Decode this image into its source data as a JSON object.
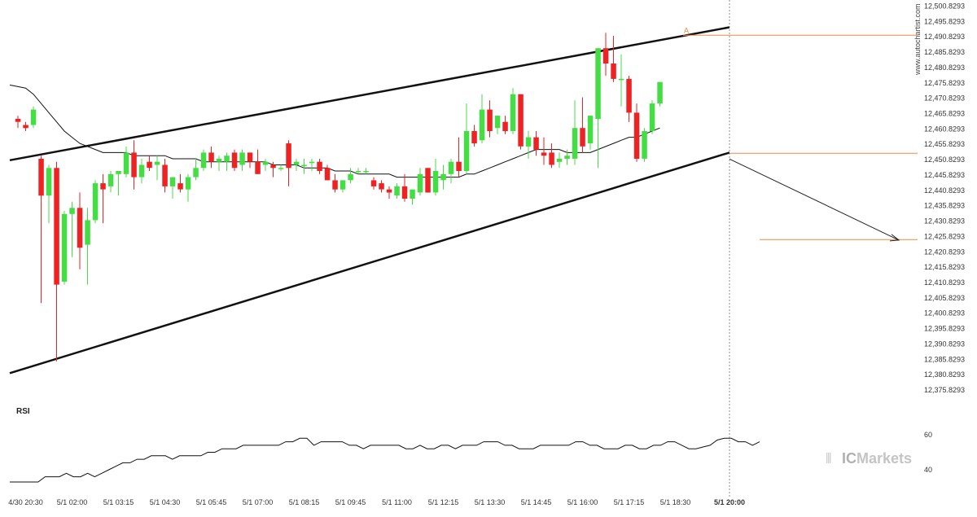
{
  "chart_data": {
    "type": "candlestick",
    "watermark_vertical": "www.autochartist.com",
    "brand": {
      "prefix": "IC",
      "name": "Markets"
    },
    "colors": {
      "up": "#44dd44",
      "down": "#ee2222",
      "pattern_lines": "#111111",
      "moving_average": "#111111",
      "level_lines": "#ee8844",
      "projection_arrow": "#222222",
      "rsi_line": "#111111",
      "axis_text": "#333333",
      "brand_text": "#b8b8b8"
    },
    "price_axis": {
      "min": 12375.8293,
      "max": 12500.8293,
      "tick_step": 5,
      "tick_labels": [
        "12,500.8293",
        "12,495.8293",
        "12,490.8293",
        "12,485.8293",
        "12,480.8293",
        "12,475.8293",
        "12,470.8293",
        "12,465.8293",
        "12,460.8293",
        "12,455.8293",
        "12,450.8293",
        "12,445.8293",
        "12,440.8293",
        "12,435.8293",
        "12,430.8293",
        "12,425.8293",
        "12,420.8293",
        "12,415.8293",
        "12,410.8293",
        "12,405.8293",
        "12,400.8293",
        "12,395.8293",
        "12,390.8293",
        "12,385.8293",
        "12,380.8293",
        "12,375.8293"
      ]
    },
    "time_axis": {
      "labels": [
        "4/30 20:30",
        "5/1 02:00",
        "5/1 03:15",
        "5/1 04:30",
        "5/1 05:45",
        "5/1 07:00",
        "5/1 08:15",
        "5/1 09:45",
        "5/1 11:00",
        "5/1 12:15",
        "5/1 13:30",
        "5/1 14:45",
        "5/1 16:00",
        "5/1 17:15",
        "5/1 18:30",
        "5/1 20:00"
      ],
      "label_bar_index": [
        1,
        7,
        13,
        19,
        25,
        31,
        37,
        43,
        49,
        55,
        61,
        67,
        73,
        79,
        85,
        92
      ],
      "bold_label": "5/1 20:00"
    },
    "candles": [
      {
        "o": 12464,
        "h": 12465,
        "l": 12461,
        "c": 12463
      },
      {
        "o": 12462,
        "h": 12463,
        "l": 12460,
        "c": 12461
      },
      {
        "o": 12462,
        "h": 12468,
        "l": 12461,
        "c": 12467
      },
      {
        "o": 12451,
        "h": 12452,
        "l": 12404,
        "c": 12439
      },
      {
        "o": 12439,
        "h": 12449,
        "l": 12430,
        "c": 12448
      },
      {
        "o": 12448,
        "h": 12450,
        "l": 12385,
        "c": 12410
      },
      {
        "o": 12411,
        "h": 12434,
        "l": 12410,
        "c": 12433
      },
      {
        "o": 12433,
        "h": 12437,
        "l": 12419,
        "c": 12435
      },
      {
        "o": 12435,
        "h": 12440,
        "l": 12415,
        "c": 12422
      },
      {
        "o": 12423,
        "h": 12435,
        "l": 12410,
        "c": 12431
      },
      {
        "o": 12431,
        "h": 12444,
        "l": 12430,
        "c": 12443
      },
      {
        "o": 12443,
        "h": 12446,
        "l": 12430,
        "c": 12441
      },
      {
        "o": 12442,
        "h": 12447,
        "l": 12440,
        "c": 12446
      },
      {
        "o": 12446,
        "h": 12447,
        "l": 12439,
        "c": 12447
      },
      {
        "o": 12446,
        "h": 12455,
        "l": 12445,
        "c": 12453
      },
      {
        "o": 12453,
        "h": 12457,
        "l": 12441,
        "c": 12445
      },
      {
        "o": 12445,
        "h": 12451,
        "l": 12443,
        "c": 12449
      },
      {
        "o": 12450,
        "h": 12452,
        "l": 12447,
        "c": 12448
      },
      {
        "o": 12449,
        "h": 12452,
        "l": 12444,
        "c": 12450
      },
      {
        "o": 12449,
        "h": 12451,
        "l": 12440,
        "c": 12442
      },
      {
        "o": 12442,
        "h": 12445,
        "l": 12438,
        "c": 12445
      },
      {
        "o": 12443,
        "h": 12446,
        "l": 12440,
        "c": 12441
      },
      {
        "o": 12441,
        "h": 12446,
        "l": 12437,
        "c": 12445
      },
      {
        "o": 12445,
        "h": 12451,
        "l": 12444,
        "c": 12448
      },
      {
        "o": 12448,
        "h": 12454,
        "l": 12447,
        "c": 12453
      },
      {
        "o": 12453,
        "h": 12455,
        "l": 12448,
        "c": 12450
      },
      {
        "o": 12450,
        "h": 12452,
        "l": 12447,
        "c": 12451
      },
      {
        "o": 12450,
        "h": 12453,
        "l": 12447,
        "c": 12452
      },
      {
        "o": 12453,
        "h": 12454,
        "l": 12447,
        "c": 12448
      },
      {
        "o": 12449,
        "h": 12454,
        "l": 12447,
        "c": 12453
      },
      {
        "o": 12453,
        "h": 12453,
        "l": 12448,
        "c": 12450
      },
      {
        "o": 12450,
        "h": 12454,
        "l": 12446,
        "c": 12446
      },
      {
        "o": 12449,
        "h": 12451,
        "l": 12447,
        "c": 12450
      },
      {
        "o": 12449,
        "h": 12450,
        "l": 12445,
        "c": 12448
      },
      {
        "o": 12448,
        "h": 12449,
        "l": 12447,
        "c": 12448
      },
      {
        "o": 12456,
        "h": 12457,
        "l": 12442,
        "c": 12448
      },
      {
        "o": 12449,
        "h": 12451,
        "l": 12447,
        "c": 12450
      },
      {
        "o": 12449,
        "h": 12451,
        "l": 12446,
        "c": 12449
      },
      {
        "o": 12450,
        "h": 12451,
        "l": 12447,
        "c": 12450
      },
      {
        "o": 12450,
        "h": 12451,
        "l": 12446,
        "c": 12447
      },
      {
        "o": 12448,
        "h": 12449,
        "l": 12444,
        "c": 12444
      },
      {
        "o": 12444,
        "h": 12446,
        "l": 12440,
        "c": 12441
      },
      {
        "o": 12441,
        "h": 12444,
        "l": 12440,
        "c": 12444
      },
      {
        "o": 12444,
        "h": 12448,
        "l": 12443,
        "c": 12446
      },
      {
        "o": 12447,
        "h": 12448,
        "l": 12446,
        "c": 12447
      },
      {
        "o": 12447,
        "h": 12448,
        "l": 12446,
        "c": 12447
      },
      {
        "o": 12444,
        "h": 12445,
        "l": 12441,
        "c": 12442
      },
      {
        "o": 12443,
        "h": 12444,
        "l": 12440,
        "c": 12441
      },
      {
        "o": 12441,
        "h": 12442,
        "l": 12438,
        "c": 12440
      },
      {
        "o": 12439,
        "h": 12443,
        "l": 12438,
        "c": 12442
      },
      {
        "o": 12442,
        "h": 12446,
        "l": 12437,
        "c": 12438
      },
      {
        "o": 12438,
        "h": 12441,
        "l": 12436,
        "c": 12441
      },
      {
        "o": 12440,
        "h": 12448,
        "l": 12439,
        "c": 12446
      },
      {
        "o": 12448,
        "h": 12448,
        "l": 12440,
        "c": 12440
      },
      {
        "o": 12440,
        "h": 12451,
        "l": 12439,
        "c": 12447
      },
      {
        "o": 12444,
        "h": 12449,
        "l": 12441,
        "c": 12446
      },
      {
        "o": 12446,
        "h": 12451,
        "l": 12443,
        "c": 12450
      },
      {
        "o": 12450,
        "h": 12458,
        "l": 12445,
        "c": 12447
      },
      {
        "o": 12447,
        "h": 12469,
        "l": 12446,
        "c": 12460
      },
      {
        "o": 12460,
        "h": 12462,
        "l": 12455,
        "c": 12456
      },
      {
        "o": 12457,
        "h": 12472,
        "l": 12456,
        "c": 12467
      },
      {
        "o": 12467,
        "h": 12470,
        "l": 12458,
        "c": 12460
      },
      {
        "o": 12461,
        "h": 12465,
        "l": 12459,
        "c": 12465
      },
      {
        "o": 12463,
        "h": 12465,
        "l": 12459,
        "c": 12460
      },
      {
        "o": 12460,
        "h": 12474,
        "l": 12459,
        "c": 12472
      },
      {
        "o": 12472,
        "h": 12472,
        "l": 12454,
        "c": 12455
      },
      {
        "o": 12455,
        "h": 12460,
        "l": 12451,
        "c": 12458
      },
      {
        "o": 12458,
        "h": 12460,
        "l": 12452,
        "c": 12454
      },
      {
        "o": 12453,
        "h": 12458,
        "l": 12449,
        "c": 12452
      },
      {
        "o": 12453,
        "h": 12456,
        "l": 12448,
        "c": 12449
      },
      {
        "o": 12450,
        "h": 12453,
        "l": 12448,
        "c": 12451
      },
      {
        "o": 12451,
        "h": 12454,
        "l": 12449,
        "c": 12452
      },
      {
        "o": 12451,
        "h": 12470,
        "l": 12449,
        "c": 12461
      },
      {
        "o": 12461,
        "h": 12471,
        "l": 12453,
        "c": 12455
      },
      {
        "o": 12456,
        "h": 12465,
        "l": 12454,
        "c": 12465
      },
      {
        "o": 12464,
        "h": 12487,
        "l": 12448,
        "c": 12487
      },
      {
        "o": 12487,
        "h": 12492,
        "l": 12478,
        "c": 12482
      },
      {
        "o": 12482,
        "h": 12491,
        "l": 12476,
        "c": 12477
      },
      {
        "o": 12477,
        "h": 12485,
        "l": 12468,
        "c": 12477
      },
      {
        "o": 12477,
        "h": 12478,
        "l": 12463,
        "c": 12466
      },
      {
        "o": 12466,
        "h": 12469,
        "l": 12450,
        "c": 12451
      },
      {
        "o": 12451,
        "h": 12461,
        "l": 12450,
        "c": 12460
      },
      {
        "o": 12460,
        "h": 12470,
        "l": 12459,
        "c": 12469
      },
      {
        "o": 12469,
        "h": 12476,
        "l": 12468,
        "c": 12476
      }
    ],
    "indicator": "RSI",
    "moving_average": [
      12475,
      12474,
      12472,
      12469,
      12466,
      12463,
      12460,
      12458,
      12456,
      12455,
      12454,
      12453,
      12453,
      12453,
      12453,
      12452,
      12452,
      12452,
      12452,
      12452,
      12451,
      12451,
      12451,
      12451,
      12450,
      12450,
      12450,
      12450,
      12450,
      12450,
      12450,
      12450,
      12450,
      12449,
      12449,
      12449,
      12449,
      12448,
      12448,
      12448,
      12448,
      12447,
      12447,
      12447,
      12446,
      12446,
      12446,
      12446,
      12446,
      12445,
      12445,
      12445,
      12445,
      12445,
      12445,
      12445,
      12445,
      12445,
      12446,
      12446,
      12447,
      12448,
      12449,
      12450,
      12451,
      12452,
      12453,
      12454,
      12454,
      12454,
      12454,
      12453,
      12453,
      12453,
      12453,
      12454,
      12455,
      12456,
      12457,
      12458,
      12458,
      12459,
      12460,
      12461
    ],
    "rsi": {
      "label": "RSI",
      "ticks": [
        60,
        40
      ],
      "values": [
        33,
        33,
        33,
        33,
        33,
        36,
        36,
        36,
        38,
        36,
        36,
        38,
        36,
        38,
        40,
        42,
        44,
        44,
        46,
        46,
        48,
        48,
        48,
        46,
        48,
        48,
        48,
        48,
        50,
        50,
        52,
        52,
        52,
        54,
        54,
        54,
        54,
        54,
        54,
        56,
        56,
        58,
        58,
        54,
        56,
        56,
        56,
        56,
        54,
        54,
        52,
        54,
        54,
        54,
        54,
        54,
        52,
        52,
        54,
        52,
        52,
        54,
        54,
        52,
        54,
        54,
        54,
        56,
        56,
        56,
        54,
        54,
        52,
        52,
        52,
        54,
        54,
        54,
        54,
        54,
        56,
        56,
        54,
        54,
        52,
        52,
        52,
        54,
        54,
        52,
        52,
        54,
        54,
        56,
        56,
        54,
        52,
        52,
        53,
        54,
        57,
        58,
        58,
        56,
        56,
        54,
        56
      ]
    },
    "pattern": {
      "type": "rising wedge",
      "upper_line": {
        "x0": 0,
        "y0": 12451.0,
        "x1": 92,
        "y1": 12493.8
      },
      "lower_line": {
        "x0": 0,
        "y0": 12382.0,
        "x1": 92,
        "y1": 12453.0
      },
      "point_label": "A",
      "point_bar": 86,
      "resistance_level": 12491.2,
      "breakout_level": 12452.8,
      "target_level": 12424.7,
      "breakout_bar": 92
    }
  }
}
